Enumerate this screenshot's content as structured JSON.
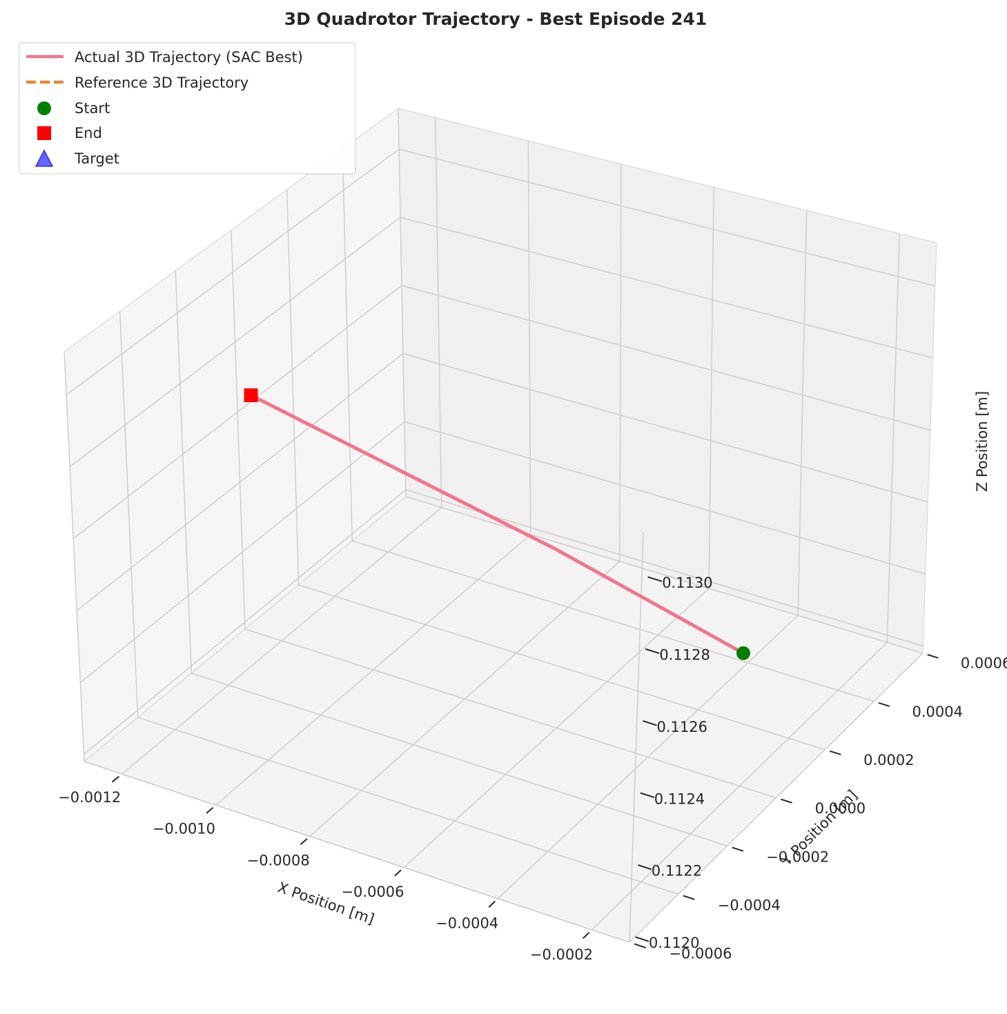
{
  "chart_data": {
    "type": "line",
    "projection": "3d",
    "title": "3D Quadrotor Trajectory - Best Episode 241",
    "xlabel": "X Position [m]",
    "ylabel": "Y Position [m]",
    "zlabel": "Z Position [m]",
    "x_ticks": [
      "−0.0012",
      "−0.0010",
      "−0.0008",
      "−0.0006",
      "−0.0004",
      "−0.0002"
    ],
    "y_ticks": [
      "−0.0006",
      "−0.0004",
      "−0.0002",
      "0.0000",
      "0.0002",
      "0.0004",
      "0.0006"
    ],
    "z_ticks": [
      "0.1120",
      "0.1122",
      "0.1124",
      "0.1126",
      "0.1128",
      "0.1130"
    ],
    "xlim": [
      -0.00128,
      -0.00012
    ],
    "ylim": [
      -0.0006,
      0.0006
    ],
    "zlim": [
      0.11198,
      0.11312
    ],
    "series": [
      {
        "name": "Actual 3D Trajectory (SAC Best)",
        "color": "#f4748c",
        "style": "solid",
        "points": [
          {
            "x": -0.0002,
            "y": 0.0,
            "z": 0.11235
          },
          {
            "x": -0.0006,
            "y": 0.0,
            "z": 0.11248
          },
          {
            "x": -0.00125,
            "y": 0.0,
            "z": 0.11266
          }
        ]
      },
      {
        "name": "Reference 3D Trajectory",
        "color": "#e08a38",
        "style": "dashed",
        "points": []
      }
    ],
    "markers": [
      {
        "name": "Start",
        "shape": "circle",
        "color": "#008000",
        "x": -0.0002,
        "y": 0.0,
        "z": 0.11235
      },
      {
        "name": "End",
        "shape": "square",
        "color": "#ff0000",
        "x": -0.00125,
        "y": 0.0,
        "z": 0.11266
      },
      {
        "name": "Target",
        "shape": "triangle",
        "color": "#4a4aff",
        "visible": false
      }
    ],
    "legend": {
      "position": "top-left",
      "entries": [
        "Actual 3D Trajectory (SAC Best)",
        "Reference 3D Trajectory",
        "Start",
        "End",
        "Target"
      ]
    },
    "grid": true
  }
}
